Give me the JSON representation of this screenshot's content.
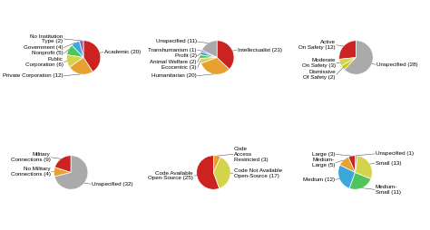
{
  "chart_data": [
    {
      "type": "pie",
      "categories": [
        "No Institution\nType (2)",
        "Government (4)",
        "Nonprofit (5)",
        "Public\nCorporation (6)",
        "Private Corporation (12)",
        "Academic (20)"
      ],
      "values": [
        2,
        4,
        5,
        6,
        12,
        20
      ],
      "colors": [
        "#9b59b6",
        "#3da7dc",
        "#4fc45a",
        "#d4d44a",
        "#e8a030",
        "#cc2222"
      ]
    },
    {
      "type": "pie",
      "categories": [
        "Unspecified (11)",
        "Transhumanism (1)",
        "Profit (2)",
        "Animal Welfare (2)",
        "Ecocentric (3)",
        "Humanitarian (20)",
        "Intellectualist (23)"
      ],
      "values": [
        11,
        1,
        2,
        2,
        3,
        20,
        23
      ],
      "colors": [
        "#aaaaaa",
        "#9b59b6",
        "#3da7dc",
        "#4fc45a",
        "#d4d44a",
        "#e8a030",
        "#cc2222"
      ]
    },
    {
      "type": "pie",
      "categories": [
        "Active\nOn Safety (12)",
        "Moderate\nOn Safety (3)",
        "Dismissive\nOf Safety (2)",
        "Unspecified (28)"
      ],
      "values": [
        12,
        3,
        2,
        28
      ],
      "colors": [
        "#cc2222",
        "#d4d44a",
        "#c8c820",
        "#aaaaaa"
      ]
    },
    {
      "type": "pie",
      "categories": [
        "Military\nConnections (9)",
        "No Military\nConnections (4)",
        "Unspecified (32)"
      ],
      "values": [
        9,
        4,
        32
      ],
      "colors": [
        "#cc2222",
        "#e8a030",
        "#aaaaaa"
      ]
    },
    {
      "type": "pie",
      "categories": [
        "Code Available\nOpen-Source (25)",
        "Code Not Available\nOpen-Source (17)",
        "Code\nAccess\nRestricted (3)"
      ],
      "values": [
        25,
        17,
        3
      ],
      "colors": [
        "#cc2222",
        "#d4d44a",
        "#e8a030"
      ]
    },
    {
      "type": "pie",
      "categories": [
        "Large (3)",
        "Medium-\nLarge (5)",
        "Medium (12)",
        "Medium-\nSmall (11)",
        "Small (13)",
        "Unspecified (1)"
      ],
      "values": [
        3,
        5,
        12,
        11,
        13,
        1
      ],
      "colors": [
        "#cc2222",
        "#e8a030",
        "#3da7dc",
        "#4fc45a",
        "#d4d44a",
        "#aaaaaa"
      ]
    }
  ]
}
